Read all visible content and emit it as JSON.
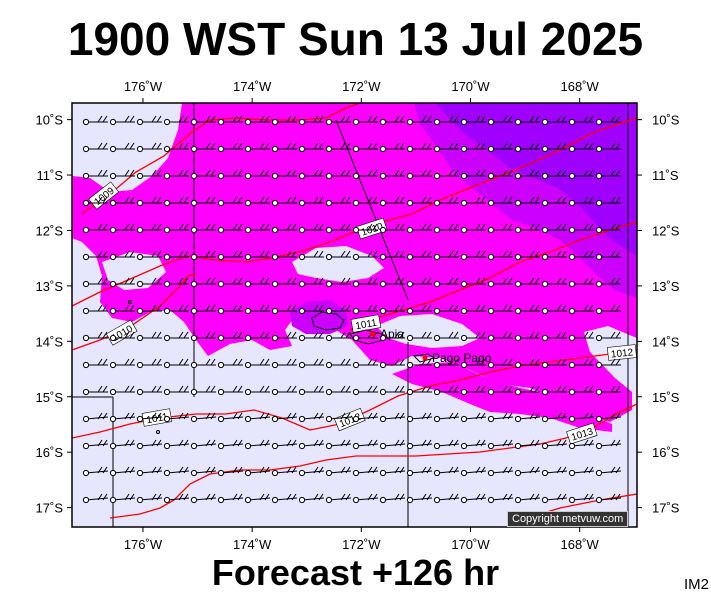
{
  "header": {
    "title": "1900 WST Sun 13 Jul 2025"
  },
  "footer": {
    "forecast_label": "Forecast +126 hr",
    "image_code": "IM2"
  },
  "copyright": "Copyright metvuw.com",
  "map": {
    "lon_ticks": [
      {
        "lon": 176,
        "label": "176˚W"
      },
      {
        "lon": 174,
        "label": "174˚W"
      },
      {
        "lon": 172,
        "label": "172˚W"
      },
      {
        "lon": 170,
        "label": "170˚W"
      },
      {
        "lon": 168,
        "label": "168˚W"
      }
    ],
    "lat_ticks": [
      {
        "lat": 10,
        "label": "10˚S"
      },
      {
        "lat": 11,
        "label": "11˚S"
      },
      {
        "lat": 12,
        "label": "12˚S"
      },
      {
        "lat": 13,
        "label": "13˚S"
      },
      {
        "lat": 14,
        "label": "14˚S"
      },
      {
        "lat": 15,
        "label": "15˚S"
      },
      {
        "lat": 16,
        "label": "16˚S"
      },
      {
        "lat": 17,
        "label": "17˚S"
      }
    ],
    "isobars": [
      {
        "label": "1009"
      },
      {
        "label": "1010"
      },
      {
        "label": "1011"
      },
      {
        "label": "1011"
      },
      {
        "label": "1010"
      },
      {
        "label": "1012"
      },
      {
        "label": "1012"
      },
      {
        "label": "1013"
      }
    ],
    "places": [
      {
        "name": "Apia",
        "lon": 171.76,
        "lat": 13.83
      },
      {
        "name": "Pago Pago",
        "lon": 170.7,
        "lat": 14.28
      }
    ],
    "colors": {
      "background": "#e6e6ff",
      "rain_light": "#ff00ff",
      "rain_medium": "#cc00ff",
      "rain_heavy": "#a000ff",
      "isobar": "#ff0000"
    }
  }
}
